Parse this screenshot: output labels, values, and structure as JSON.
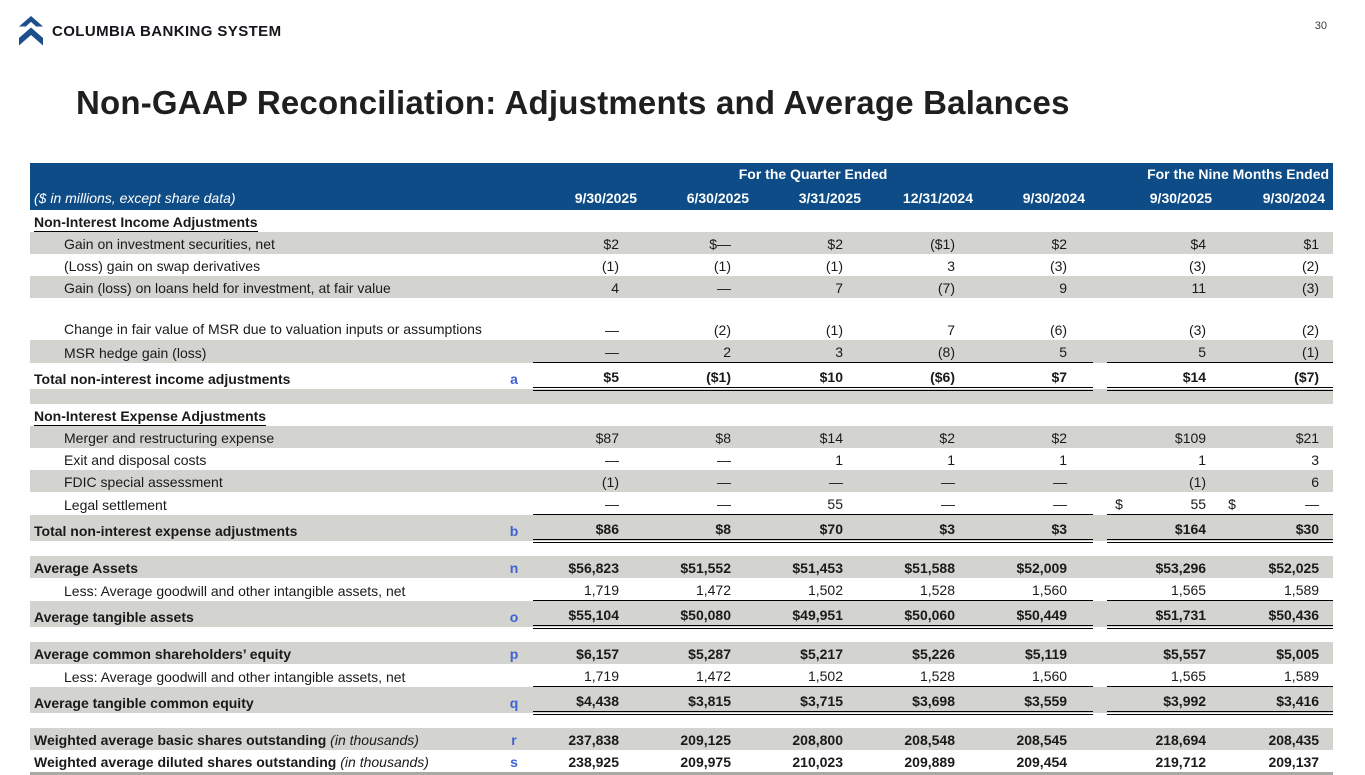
{
  "page": {
    "number": "30"
  },
  "brand": {
    "name": "COLUMBIA BANKING SYSTEM",
    "logo_color": "#1C4E8C"
  },
  "title": "Non-GAAP Reconciliation: Adjustments and Average Balances",
  "colors": {
    "header_blue": "#0E4C87",
    "stripe_gray": "#D3D3D0",
    "letter_blue": "#3E63D0",
    "bottom_rule_gray": "#A9A9A6"
  },
  "table": {
    "caption": "($ in millions, except share data)",
    "group_headers": {
      "quarter": "For the Quarter Ended",
      "nine_months": "For the Nine Months Ended"
    },
    "columns": [
      "9/30/2025",
      "6/30/2025",
      "3/31/2025",
      "12/31/2024",
      "9/30/2024",
      "9/30/2025",
      "9/30/2024"
    ],
    "rows": [
      {
        "kind": "section",
        "label": "Non-Interest Income Adjustments",
        "shade": false
      },
      {
        "kind": "data",
        "label": "Gain on investment securities, net",
        "shade": true,
        "values": [
          "$2",
          "$—",
          "$2",
          "($1)",
          "$2",
          "$4",
          "$1"
        ]
      },
      {
        "kind": "data",
        "label": "(Loss) gain on swap derivatives",
        "shade": false,
        "values": [
          "(1)",
          "(1)",
          "(1)",
          "3",
          "(3)",
          "(3)",
          "(2)"
        ]
      },
      {
        "kind": "data",
        "label": "Gain (loss) on loans held for investment, at fair value",
        "shade": true,
        "values": [
          "4",
          "—",
          "7",
          "(7)",
          "9",
          "11",
          "(3)"
        ]
      },
      {
        "kind": "data",
        "label": "Change in fair value of MSR due to valuation inputs or assumptions",
        "shade": false,
        "wrap": true,
        "values": [
          "—",
          "(2)",
          "(1)",
          "7",
          "(6)",
          "(3)",
          "(2)"
        ]
      },
      {
        "kind": "data",
        "label": "MSR hedge gain (loss)",
        "shade": true,
        "values": [
          "—",
          "2",
          "3",
          "(8)",
          "5",
          "5",
          "(1)"
        ]
      },
      {
        "kind": "total",
        "label": "Total non-interest income adjustments",
        "letter": "a",
        "shade": false,
        "values": [
          "$5",
          "($1)",
          "$10",
          "($6)",
          "$7",
          "$14",
          "($7)"
        ]
      },
      {
        "kind": "spacer",
        "shade": true
      },
      {
        "kind": "section",
        "label": "Non-Interest Expense Adjustments",
        "shade": false
      },
      {
        "kind": "data",
        "label": "Merger and restructuring expense",
        "shade": true,
        "values": [
          "$87",
          "$8",
          "$14",
          "$2",
          "$2",
          "$109",
          "$21"
        ]
      },
      {
        "kind": "data",
        "label": "Exit and disposal costs",
        "shade": false,
        "values": [
          "—",
          "—",
          "1",
          "1",
          "1",
          "1",
          "3"
        ]
      },
      {
        "kind": "data",
        "label": "FDIC special assessment",
        "shade": true,
        "values": [
          "(1)",
          "—",
          "—",
          "—",
          "—",
          "(1)",
          "6"
        ]
      },
      {
        "kind": "data",
        "label": "Legal settlement",
        "shade": false,
        "dollar_prefix": [
          5,
          6
        ],
        "values": [
          "—",
          "—",
          "55",
          "—",
          "—",
          "55",
          "—"
        ]
      },
      {
        "kind": "total",
        "label": "Total non-interest expense adjustments",
        "letter": "b",
        "shade": true,
        "values": [
          "$86",
          "$8",
          "$70",
          "$3",
          "$3",
          "$164",
          "$30"
        ]
      },
      {
        "kind": "spacer",
        "shade": false
      },
      {
        "kind": "bold",
        "label": "Average Assets",
        "letter": "n",
        "shade": true,
        "values": [
          "$56,823",
          "$51,552",
          "$51,453",
          "$51,588",
          "$52,009",
          "$53,296",
          "$52,025"
        ]
      },
      {
        "kind": "data",
        "label": "Less: Average goodwill and other intangible assets, net",
        "shade": false,
        "values": [
          "1,719",
          "1,472",
          "1,502",
          "1,528",
          "1,560",
          "1,565",
          "1,589"
        ]
      },
      {
        "kind": "total",
        "label": "Average tangible assets",
        "letter": "o",
        "shade": true,
        "values": [
          "$55,104",
          "$50,080",
          "$49,951",
          "$50,060",
          "$50,449",
          "$51,731",
          "$50,436"
        ]
      },
      {
        "kind": "spacer",
        "shade": false
      },
      {
        "kind": "bold",
        "label": "Average common shareholders’ equity",
        "letter": "p",
        "shade": true,
        "values": [
          "$6,157",
          "$5,287",
          "$5,217",
          "$5,226",
          "$5,119",
          "$5,557",
          "$5,005"
        ]
      },
      {
        "kind": "data",
        "label": "Less: Average goodwill and other intangible assets, net",
        "shade": false,
        "values": [
          "1,719",
          "1,472",
          "1,502",
          "1,528",
          "1,560",
          "1,565",
          "1,589"
        ]
      },
      {
        "kind": "total",
        "label": "Average tangible common equity",
        "letter": "q",
        "shade": true,
        "values": [
          "$4,438",
          "$3,815",
          "$3,715",
          "$3,698",
          "$3,559",
          "$3,992",
          "$3,416"
        ]
      },
      {
        "kind": "spacer",
        "shade": false
      },
      {
        "kind": "bold",
        "label": "Weighted average basic shares outstanding",
        "label_italic": "(in thousands)",
        "letter": "r",
        "shade": true,
        "values": [
          "237,838",
          "209,125",
          "208,800",
          "208,548",
          "208,545",
          "218,694",
          "208,435"
        ]
      },
      {
        "kind": "bold",
        "label": "Weighted average diluted shares outstanding",
        "label_italic": "(in thousands)",
        "letter": "s",
        "shade": false,
        "bottom_rule": true,
        "values": [
          "238,925",
          "209,975",
          "210,023",
          "209,889",
          "209,454",
          "219,712",
          "209,137"
        ]
      }
    ]
  }
}
